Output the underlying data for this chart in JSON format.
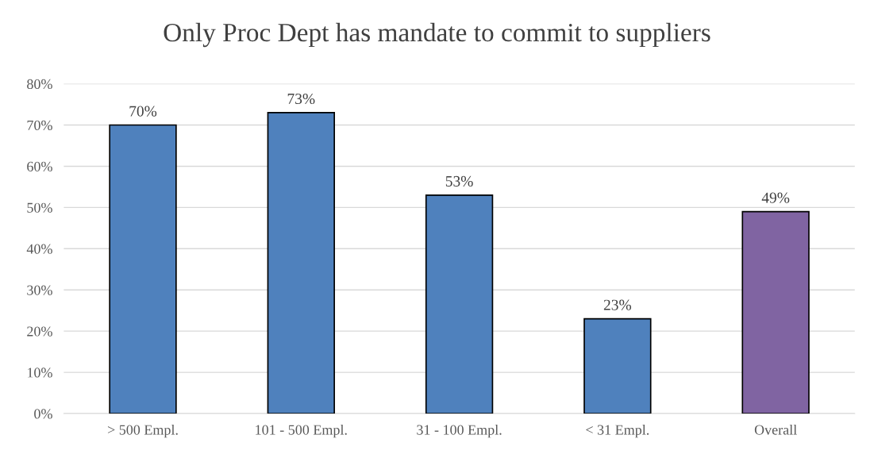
{
  "chart_data": {
    "type": "bar",
    "title": "Only Proc Dept has mandate to commit to suppliers",
    "categories": [
      "> 500 Empl.",
      "101 - 500 Empl.",
      "31 - 100 Empl.",
      "< 31 Empl.",
      "Overall"
    ],
    "values": [
      70,
      73,
      53,
      23,
      49
    ],
    "colors": [
      "#4f81bd",
      "#4f81bd",
      "#4f81bd",
      "#4f81bd",
      "#8064a2"
    ],
    "value_labels": [
      "70%",
      "73%",
      "53%",
      "23%",
      "49%"
    ],
    "ylim": [
      0,
      80
    ],
    "yticks": [
      {
        "value": 0,
        "label": "0%"
      },
      {
        "value": 10,
        "label": "10%"
      },
      {
        "value": 20,
        "label": "20%"
      },
      {
        "value": 30,
        "label": "30%"
      },
      {
        "value": 40,
        "label": "40%"
      },
      {
        "value": 50,
        "label": "50%"
      },
      {
        "value": 60,
        "label": "60%"
      },
      {
        "value": 70,
        "label": "70%"
      },
      {
        "value": 80,
        "label": "80%"
      }
    ],
    "grid": "y"
  }
}
